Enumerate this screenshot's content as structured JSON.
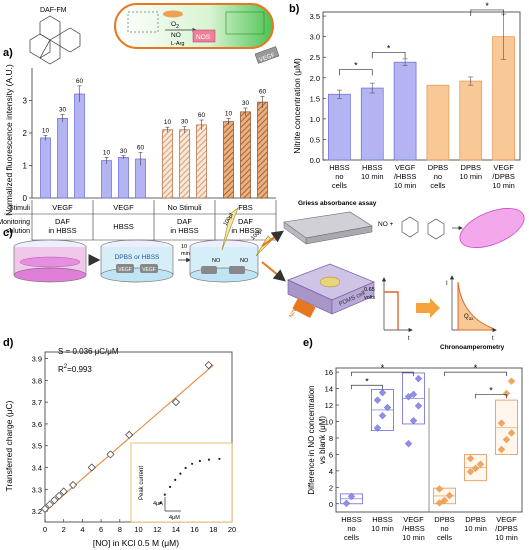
{
  "panel_a": {
    "label": "a)",
    "probe": "DAF-FM",
    "cell": {
      "o2": "O",
      "o2_sub": "2",
      "no": "NO",
      "nos": "NOS",
      "larg": "L-Arg",
      "vegf_tag": "VEGF"
    },
    "ylabel": "Normalized fluorescence intensity (A.U.)",
    "row_labels": {
      "stimuli": "Stimuli",
      "monitoring_1": "Monitoring",
      "monitoring_2": "solution"
    },
    "groups": [
      {
        "stimuli": "VEGF",
        "monitor_1": "DAF",
        "monitor_2": "in HBSS"
      },
      {
        "stimuli": "VEGF",
        "monitor_1": "HBSS",
        "monitor_2": ""
      },
      {
        "stimuli": "No Stimuli",
        "monitor_1": "DAF",
        "monitor_2": "in HBSS"
      },
      {
        "stimuli": "FBS",
        "monitor_1": "DAF",
        "monitor_2": "in HBSS"
      }
    ]
  },
  "panel_b": {
    "label": "b)",
    "ylabel": "Nitrite concentration (μM)",
    "categories": [
      [
        "HBSS",
        "no",
        "cells"
      ],
      [
        "HBSS",
        "10 min",
        ""
      ],
      [
        "VEGF",
        "/HBSS",
        "10 min"
      ],
      [
        "DPBS",
        "no",
        "cells"
      ],
      [
        "DPBS",
        "10 min",
        ""
      ],
      [
        "VEGF",
        "/DPBS",
        "10 min"
      ]
    ],
    "star": "*"
  },
  "panel_c": {
    "label": "c)",
    "dish_label": "DPBS or HBSS",
    "vegf": "VEGF",
    "time_1": "10",
    "time_2": "min",
    "sample_1": "100μl",
    "sample_2": "100μl",
    "no": "NO",
    "griess": "Griess absorbance assay",
    "no_plus": "NO +",
    "device_1": "PDMS cell",
    "device_2": "NiNE",
    "volts_val": "0.65",
    "volts_unit": "volts",
    "t": "t",
    "i": "I",
    "q": "Q",
    "q_sub": "ox",
    "chrono": "Chronoamperometry"
  },
  "panel_d": {
    "label": "d)",
    "slope": "S = 0.036 μC/μM",
    "r2_label": "R",
    "r2_sup": "2",
    "r2_value": "=0.993",
    "xlabel": "[NO] in KCl 0.5 M (μM)",
    "ylabel": "Transferred charge (μC)",
    "inset": {
      "ylabel": "Peak current",
      "yscale": "4μA",
      "xscale": "4μM"
    }
  },
  "panel_e": {
    "label": "e)",
    "ylabel_1": "Difference in NO concentration",
    "ylabel_2": "vs blank (μM)",
    "star": "*"
  },
  "colors": {
    "blue_fill": "#b4b4f2",
    "blue_edge": "#6a6ad8",
    "orange_fill": "#f8c896",
    "orange_edge": "#e39450",
    "hatch_brown": "#c0703c",
    "fit_line": "#e8893a"
  },
  "chart_data": [
    {
      "type": "bar",
      "panel": "a",
      "ylim": [
        0,
        4
      ],
      "yticks": [
        0,
        1,
        2,
        3
      ],
      "categories": [
        "VEGF 10",
        "VEGF 30",
        "VEGF 60",
        "HBSS 10",
        "HBSS 30",
        "HBSS 60",
        "No Stimuli 10",
        "No Stimuli 30",
        "No Stimuli 60",
        "FBS 10",
        "FBS 30",
        "FBS 60"
      ],
      "bar_labels": [
        "10",
        "30",
        "60",
        "10",
        "30",
        "60",
        "10",
        "30",
        "60",
        "10",
        "30",
        "60"
      ],
      "values": [
        1.85,
        2.45,
        3.2,
        1.15,
        1.25,
        1.2,
        2.1,
        2.1,
        2.25,
        2.35,
        2.65,
        2.95
      ],
      "errors": [
        0.08,
        0.12,
        0.25,
        0.1,
        0.05,
        0.2,
        0.08,
        0.1,
        0.15,
        0.1,
        0.12,
        0.18
      ],
      "styles": [
        "blue",
        "blue",
        "blue",
        "blue",
        "blue",
        "blue",
        "hatch-tan",
        "hatch-tan",
        "hatch-tan",
        "hatch-brown",
        "hatch-brown",
        "hatch-brown"
      ]
    },
    {
      "type": "bar",
      "panel": "b",
      "ylim": [
        0,
        3.6
      ],
      "yticks": [
        0.0,
        0.5,
        1.0,
        1.5,
        2.0,
        2.5,
        3.0,
        3.5
      ],
      "ytick_labels": [
        "0.0",
        "0.5",
        "1.0",
        "1.5",
        "2.0",
        "2.5",
        "3.0",
        "3.5"
      ],
      "values": [
        1.6,
        1.75,
        2.38,
        1.82,
        1.92,
        3.0
      ],
      "errors": [
        0.1,
        0.12,
        0.08,
        0.0,
        0.1,
        0.55
      ],
      "styles": [
        "blue",
        "blue",
        "blue",
        "orange",
        "orange",
        "orange"
      ],
      "significance": [
        [
          0,
          1
        ],
        [
          1,
          2
        ],
        [
          4,
          5
        ]
      ]
    },
    {
      "type": "scatter",
      "panel": "d",
      "xlim": [
        0,
        20
      ],
      "ylim": [
        3.15,
        3.93
      ],
      "xticks": [
        0,
        2,
        4,
        6,
        8,
        10,
        12,
        14,
        16,
        18,
        20
      ],
      "yticks": [
        3.2,
        3.3,
        3.4,
        3.5,
        3.6,
        3.7,
        3.8,
        3.9
      ],
      "ytick_labels": [
        "3.2",
        "3.3",
        "3.4",
        "3.5",
        "3.6",
        "3.7",
        "3.8",
        "3.9"
      ],
      "x": [
        0,
        0.5,
        1,
        1.5,
        2,
        3,
        5,
        7,
        9,
        14,
        17.5
      ],
      "y": [
        3.21,
        3.23,
        3.25,
        3.27,
        3.29,
        3.32,
        3.4,
        3.46,
        3.55,
        3.7,
        3.87
      ],
      "fit": {
        "x": [
          0,
          18
        ],
        "y": [
          3.2,
          3.87
        ]
      },
      "inset_points": [
        [
          0.5,
          1.0
        ],
        [
          1.2,
          2.2
        ],
        [
          2.0,
          3.3
        ],
        [
          2.8,
          4.3
        ],
        [
          3.6,
          5.2
        ],
        [
          4.4,
          6.0
        ],
        [
          5.4,
          6.6
        ],
        [
          6.6,
          7.0
        ],
        [
          8.0,
          7.2
        ],
        [
          9.6,
          7.3
        ]
      ]
    },
    {
      "type": "box",
      "panel": "e",
      "ylim": [
        -1,
        16.5
      ],
      "yticks": [
        0,
        2,
        4,
        6,
        8,
        10,
        12,
        14,
        16
      ],
      "boxes": [
        {
          "low": 0.0,
          "high": 1.2,
          "mid": 0.6,
          "points": [
            0.05,
            0.9
          ],
          "style": "blue"
        },
        {
          "low": 8.9,
          "high": 13.9,
          "mid": 11.4,
          "points": [
            9.2,
            10.7,
            11.7,
            12.6,
            13.5
          ],
          "style": "blue"
        },
        {
          "low": 9.7,
          "high": 15.9,
          "mid": 12.8,
          "points": [
            7.3,
            10.1,
            11.9,
            13.0,
            13.3,
            15.2
          ],
          "style": "blue"
        },
        {
          "low": 0.0,
          "high": 1.9,
          "mid": 0.95,
          "points": [
            0.1,
            0.4,
            1.0,
            1.8
          ],
          "style": "orange"
        },
        {
          "low": 2.8,
          "high": 6.0,
          "mid": 4.4,
          "points": [
            3.9,
            4.3,
            4.8,
            5.5
          ],
          "style": "orange"
        },
        {
          "low": 6.0,
          "high": 12.6,
          "mid": 9.3,
          "points": [
            6.6,
            7.8,
            8.6,
            9.8,
            13.4,
            14.9
          ],
          "style": "orange"
        }
      ],
      "categories": [
        [
          "HBSS",
          "no",
          "cells"
        ],
        [
          "HBSS",
          "10 min",
          ""
        ],
        [
          "VEGF",
          "/HBSS",
          "10 min"
        ],
        [
          "DPBS",
          "no",
          "cells"
        ],
        [
          "DPBS",
          "10 min",
          ""
        ],
        [
          "VEGF",
          "/DPBS",
          "10 min"
        ]
      ],
      "significance": [
        [
          0,
          1
        ],
        [
          0,
          2
        ],
        [
          3,
          5
        ],
        [
          4,
          5
        ]
      ]
    }
  ]
}
